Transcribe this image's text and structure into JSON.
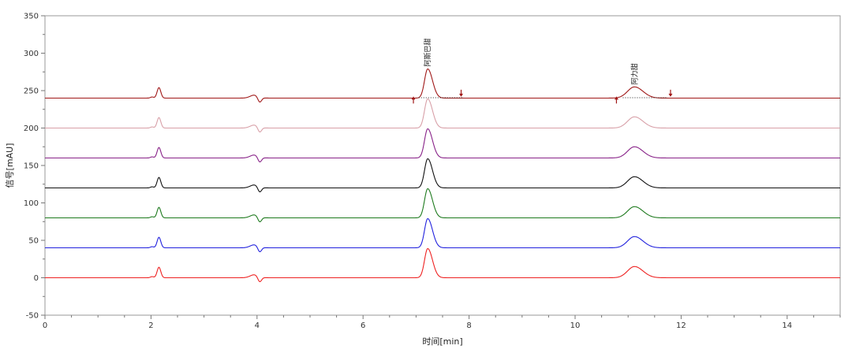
{
  "chart_data": {
    "type": "line",
    "xlabel": "时间[min]",
    "ylabel": "信号[mAU]",
    "xlim": [
      0,
      15
    ],
    "ylim": [
      -50,
      350
    ],
    "x_ticks": [
      0,
      2,
      4,
      6,
      8,
      10,
      12,
      14
    ],
    "y_ticks": [
      -50,
      0,
      50,
      100,
      150,
      200,
      250,
      300,
      350
    ],
    "grid": false,
    "legend": "none",
    "peak_labels": [
      {
        "text": "阿斯巴甜",
        "x": 7.22,
        "y": 282
      },
      {
        "text": "阿力甜",
        "x": 11.12,
        "y": 258
      }
    ],
    "integration_markers": [
      {
        "x": 6.95,
        "y": 237
      },
      {
        "x": 7.85,
        "y": 247
      },
      {
        "x": 10.78,
        "y": 237
      },
      {
        "x": 11.8,
        "y": 247
      }
    ],
    "peak_shape": {
      "peaks": [
        {
          "x": 2.15,
          "height": 14
        },
        {
          "x": 7.22,
          "height": 39
        },
        {
          "x": 11.12,
          "height": 15
        }
      ],
      "dips": [
        {
          "x": 3.95,
          "height": 4
        },
        {
          "x": 4.05,
          "height": -7
        }
      ]
    },
    "series": [
      {
        "offset": 240,
        "color": "#a01818"
      },
      {
        "offset": 200,
        "color": "#d8a0a8"
      },
      {
        "offset": 160,
        "color": "#882288"
      },
      {
        "offset": 120,
        "color": "#111111"
      },
      {
        "offset": 80,
        "color": "#1e7a1e"
      },
      {
        "offset": 40,
        "color": "#2222dd"
      },
      {
        "offset": 0,
        "color": "#ee2222"
      }
    ]
  }
}
